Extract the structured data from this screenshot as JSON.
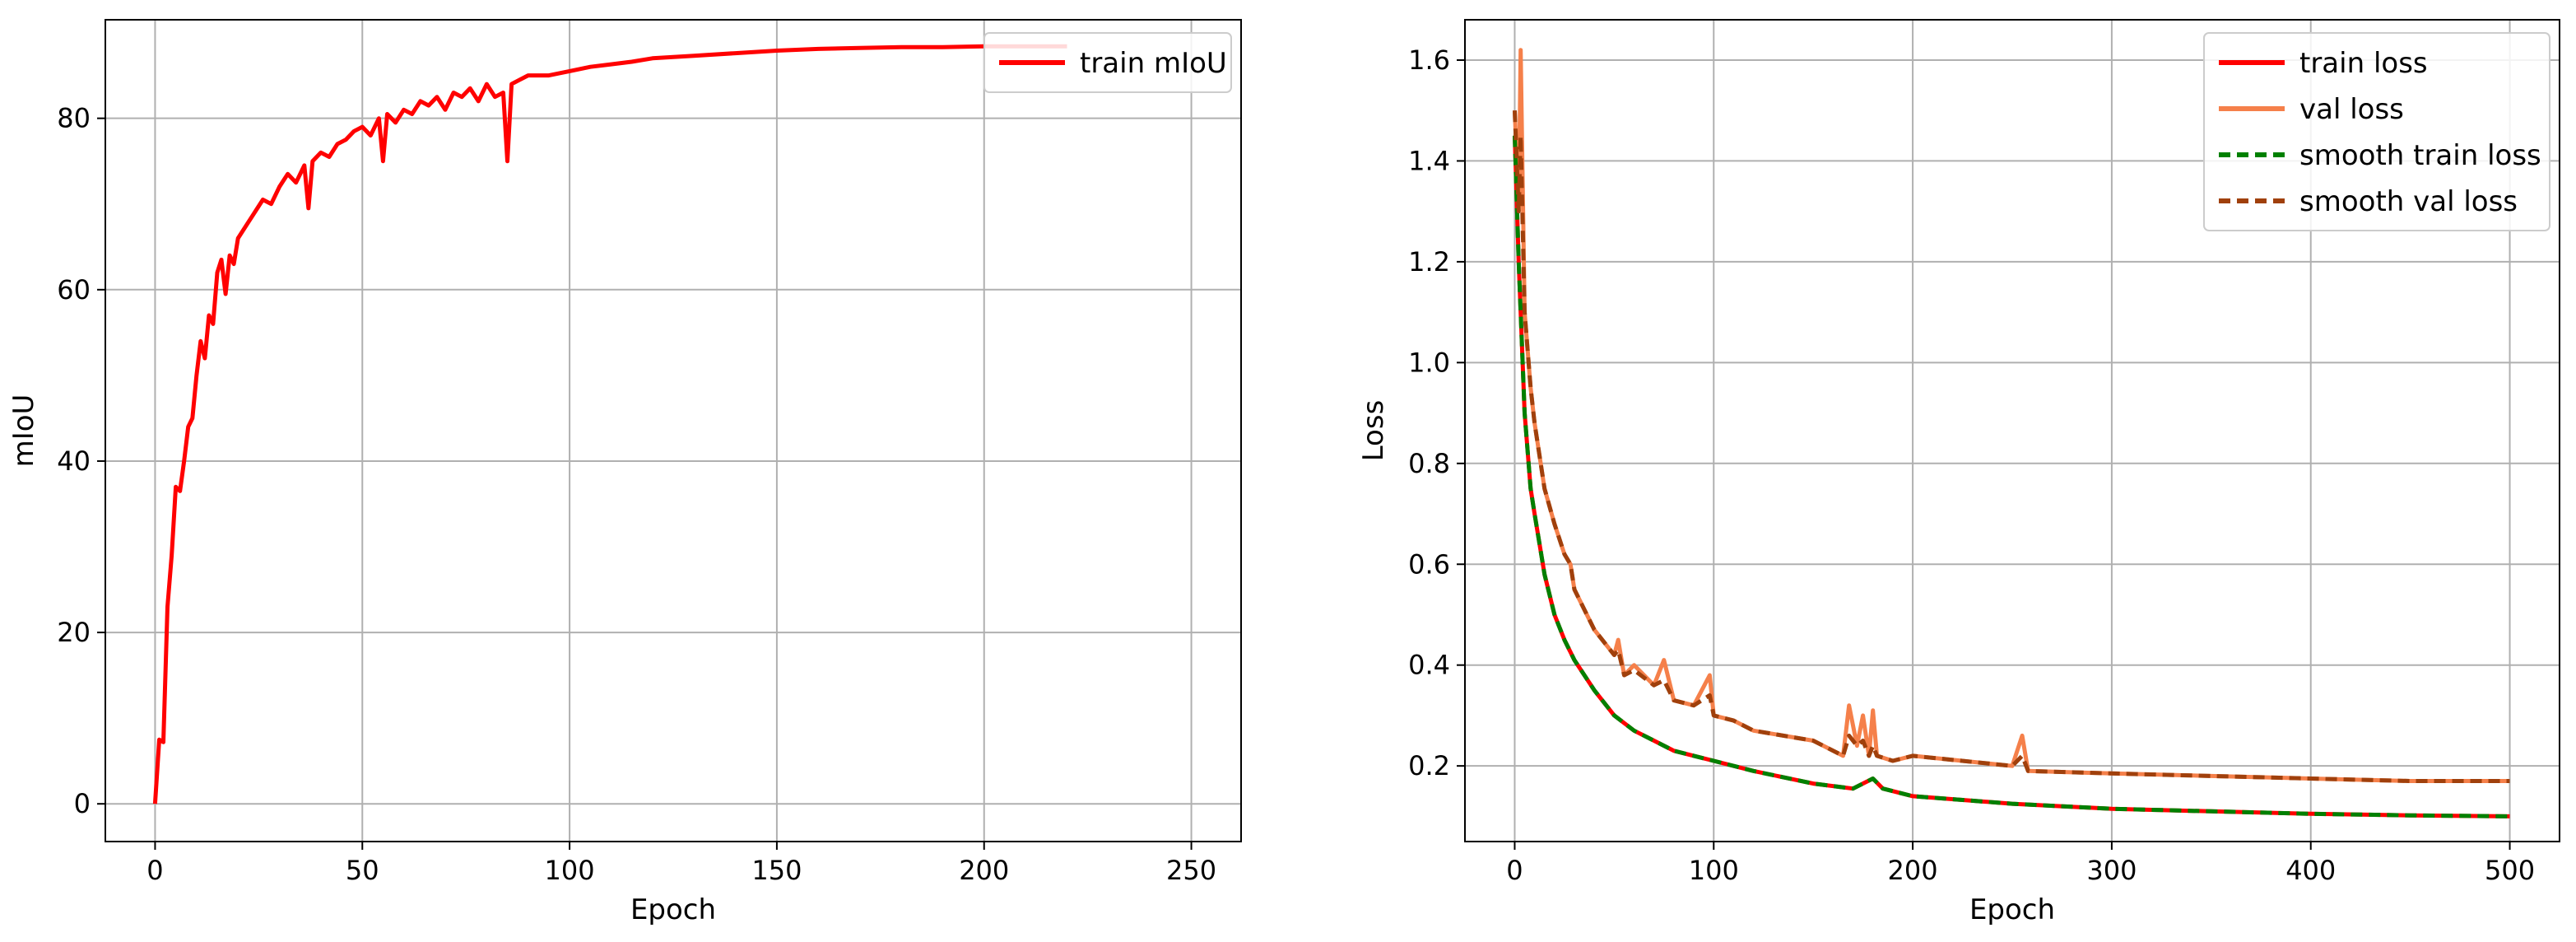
{
  "chart_data": [
    {
      "type": "line",
      "xlabel": "Epoch",
      "ylabel": "mIoU",
      "xlim": [
        -12,
        262
      ],
      "ylim": [
        -4.4,
        91.5
      ],
      "xticks": [
        0,
        50,
        100,
        150,
        200,
        250
      ],
      "yticks": [
        0,
        20,
        40,
        60,
        80
      ],
      "grid": true,
      "legend_position": "upper right",
      "series": [
        {
          "name": "train mIoU",
          "color": "#ff0000",
          "x": [
            0,
            1,
            2,
            3,
            4,
            5,
            6,
            7,
            8,
            9,
            10,
            11,
            12,
            13,
            14,
            15,
            16,
            17,
            18,
            19,
            20,
            22,
            24,
            26,
            28,
            30,
            32,
            34,
            36,
            37,
            38,
            40,
            42,
            44,
            46,
            48,
            50,
            52,
            54,
            55,
            56,
            58,
            60,
            62,
            64,
            66,
            68,
            70,
            72,
            74,
            76,
            78,
            80,
            82,
            84,
            85,
            86,
            88,
            90,
            95,
            100,
            105,
            110,
            115,
            120,
            130,
            140,
            150,
            160,
            170,
            180,
            190,
            200,
            210,
            220
          ],
          "y": [
            0,
            7.5,
            7.2,
            23,
            29,
            37,
            36.5,
            40,
            44,
            45,
            50,
            54,
            52,
            57,
            56,
            62,
            63.5,
            59.5,
            64,
            63,
            66,
            67.5,
            69,
            70.5,
            70,
            72,
            73.5,
            72.5,
            74.5,
            69.5,
            75,
            76,
            75.5,
            77,
            77.5,
            78.5,
            79,
            78,
            80,
            75,
            80.5,
            79.5,
            81,
            80.5,
            82,
            81.5,
            82.5,
            81,
            83,
            82.5,
            83.5,
            82,
            84,
            82.5,
            83,
            75,
            84,
            84.5,
            85,
            85,
            85.5,
            86,
            86.3,
            86.6,
            87,
            87.3,
            87.6,
            87.9,
            88.1,
            88.2,
            88.3,
            88.3,
            88.4,
            88.4,
            88.4
          ]
        }
      ]
    },
    {
      "type": "line",
      "xlabel": "Epoch",
      "ylabel": "Loss",
      "xlim": [
        -25,
        525
      ],
      "ylim": [
        0.05,
        1.68
      ],
      "xticks": [
        0,
        100,
        200,
        300,
        400,
        500
      ],
      "yticks": [
        0.2,
        0.4,
        0.6,
        0.8,
        1.0,
        1.2,
        1.4,
        1.6
      ],
      "grid": true,
      "legend_position": "upper right",
      "series": [
        {
          "name": "train loss",
          "color": "#ff0000",
          "style": "solid",
          "x": [
            0,
            2,
            5,
            8,
            10,
            15,
            20,
            25,
            30,
            40,
            50,
            60,
            70,
            80,
            90,
            100,
            120,
            150,
            170,
            180,
            185,
            200,
            250,
            300,
            350,
            400,
            450,
            500
          ],
          "y": [
            1.45,
            1.2,
            0.9,
            0.75,
            0.7,
            0.58,
            0.5,
            0.45,
            0.41,
            0.35,
            0.3,
            0.27,
            0.25,
            0.23,
            0.22,
            0.21,
            0.19,
            0.165,
            0.155,
            0.175,
            0.155,
            0.14,
            0.125,
            0.115,
            0.11,
            0.105,
            0.102,
            0.1
          ]
        },
        {
          "name": "val loss",
          "color": "#f5804a",
          "style": "solid",
          "x": [
            0,
            2,
            3,
            5,
            8,
            10,
            15,
            20,
            25,
            28,
            30,
            40,
            50,
            52,
            55,
            60,
            70,
            75,
            80,
            90,
            98,
            100,
            110,
            120,
            150,
            165,
            168,
            172,
            175,
            178,
            180,
            182,
            190,
            200,
            250,
            255,
            258,
            300,
            350,
            400,
            450,
            500
          ],
          "y": [
            1.5,
            1.3,
            1.62,
            1.1,
            0.95,
            0.88,
            0.75,
            0.68,
            0.62,
            0.6,
            0.55,
            0.47,
            0.42,
            0.45,
            0.38,
            0.4,
            0.36,
            0.41,
            0.33,
            0.32,
            0.38,
            0.3,
            0.29,
            0.27,
            0.25,
            0.22,
            0.32,
            0.24,
            0.3,
            0.22,
            0.31,
            0.22,
            0.21,
            0.22,
            0.2,
            0.26,
            0.19,
            0.185,
            0.18,
            0.175,
            0.17,
            0.17
          ]
        },
        {
          "name": "smooth train loss",
          "color": "#008000",
          "style": "dashed",
          "x": [
            0,
            2,
            5,
            8,
            10,
            15,
            20,
            25,
            30,
            40,
            50,
            60,
            70,
            80,
            90,
            100,
            120,
            150,
            170,
            180,
            185,
            200,
            250,
            300,
            350,
            400,
            450,
            500
          ],
          "y": [
            1.45,
            1.2,
            0.9,
            0.75,
            0.7,
            0.58,
            0.5,
            0.45,
            0.41,
            0.35,
            0.3,
            0.27,
            0.25,
            0.23,
            0.22,
            0.21,
            0.19,
            0.165,
            0.155,
            0.175,
            0.155,
            0.14,
            0.125,
            0.115,
            0.11,
            0.105,
            0.102,
            0.1
          ]
        },
        {
          "name": "smooth val loss",
          "color": "#a0400c",
          "style": "dashed",
          "x": [
            0,
            2,
            3,
            5,
            8,
            10,
            15,
            20,
            25,
            28,
            30,
            40,
            50,
            52,
            55,
            60,
            70,
            75,
            80,
            90,
            98,
            100,
            110,
            120,
            150,
            165,
            168,
            172,
            175,
            178,
            180,
            182,
            190,
            200,
            250,
            255,
            258,
            300,
            350,
            400,
            450,
            500
          ],
          "y": [
            1.5,
            1.3,
            1.45,
            1.1,
            0.95,
            0.88,
            0.75,
            0.68,
            0.62,
            0.6,
            0.55,
            0.47,
            0.42,
            0.43,
            0.38,
            0.39,
            0.36,
            0.37,
            0.33,
            0.32,
            0.34,
            0.3,
            0.29,
            0.27,
            0.25,
            0.22,
            0.26,
            0.24,
            0.25,
            0.22,
            0.24,
            0.22,
            0.21,
            0.22,
            0.2,
            0.22,
            0.19,
            0.185,
            0.18,
            0.175,
            0.17,
            0.17
          ]
        }
      ]
    }
  ]
}
